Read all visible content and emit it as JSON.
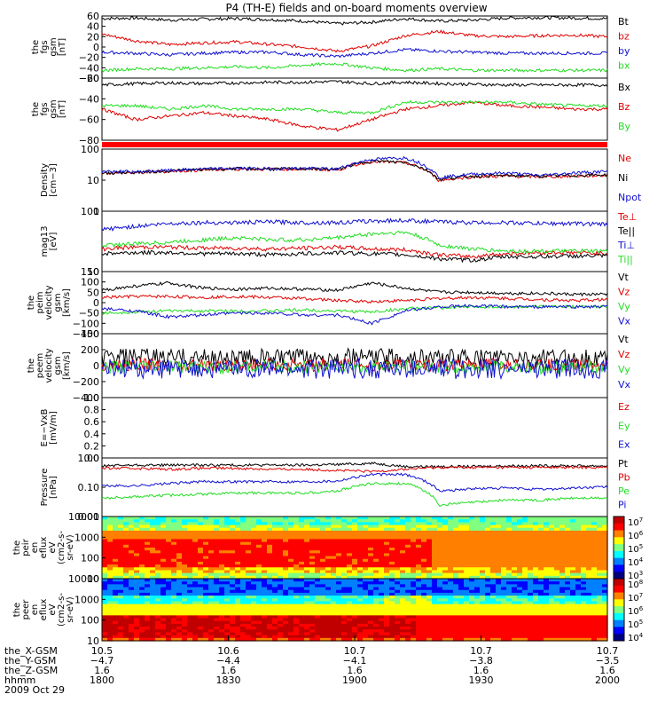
{
  "title": "P4 (TH-E) fields and on-board moments overview",
  "colors": {
    "black": "#000000",
    "red": "#e00000",
    "green": "#22dd22",
    "blue": "#1010d0",
    "ltgreen": "#33ee33",
    "orange": "#ff3333"
  },
  "chart_data": [
    {
      "type": "line",
      "ylabel": [
        "the",
        "fgs",
        "gsm",
        "[nT]"
      ],
      "yticks": [
        "60",
        "40",
        "20",
        "0",
        "−20",
        "−40",
        "−60"
      ],
      "ylim": [
        -60,
        60
      ],
      "series": [
        {
          "name": "Bt",
          "color": "black",
          "values": [
            55,
            56,
            52,
            54,
            55,
            53,
            50,
            45,
            48,
            55,
            50,
            52,
            56,
            57,
            56,
            55
          ]
        },
        {
          "name": "bz",
          "color": "red",
          "values": [
            25,
            12,
            5,
            8,
            10,
            5,
            0,
            -8,
            2,
            22,
            30,
            22,
            20,
            22,
            23,
            20
          ]
        },
        {
          "name": "by",
          "color": "blue",
          "values": [
            -10,
            -12,
            -15,
            -12,
            -10,
            -10,
            -15,
            -18,
            -12,
            -5,
            -8,
            -10,
            -12,
            -12,
            -12,
            -12
          ]
        },
        {
          "name": "bx",
          "color": "green",
          "values": [
            -45,
            -42,
            -42,
            -40,
            -38,
            -40,
            -35,
            -32,
            -40,
            -45,
            -42,
            -45,
            -45,
            -45,
            -45,
            -45
          ]
        }
      ]
    },
    {
      "type": "line",
      "ylabel": [
        "the",
        "fgs",
        "gsm",
        "[nT]"
      ],
      "yticks": [
        "−20",
        "−40",
        "−60",
        "−80"
      ],
      "ylim": [
        -90,
        0
      ],
      "series": [
        {
          "name": "Bx",
          "color": "black",
          "values": [
            -10,
            -8,
            -7,
            -8,
            -7,
            -6,
            -6,
            -5,
            -8,
            -6,
            -8,
            -9,
            -10,
            -10,
            -10,
            -10
          ]
        },
        {
          "name": "Bz",
          "color": "red",
          "values": [
            -45,
            -60,
            -55,
            -50,
            -55,
            -60,
            -70,
            -75,
            -60,
            -45,
            -40,
            -35,
            -40,
            -42,
            -45,
            -45
          ]
        },
        {
          "name": "By",
          "color": "green",
          "values": [
            -40,
            -40,
            -45,
            -40,
            -45,
            -45,
            -45,
            -50,
            -50,
            -35,
            -35,
            -35,
            -35,
            -38,
            -40,
            -40
          ]
        }
      ]
    },
    {
      "type": "line",
      "ylabel": [
        "Density",
        "[cm−3]"
      ],
      "yticks": [
        "100",
        "10",
        "1"
      ],
      "log": true,
      "ylim": [
        1,
        150
      ],
      "series": [
        {
          "name": "Ne",
          "color": "red",
          "values": [
            22,
            22,
            25,
            28,
            30,
            30,
            30,
            28,
            55,
            50,
            12,
            16,
            17,
            16,
            17,
            18
          ]
        },
        {
          "name": "Ni",
          "color": "black",
          "values": [
            22,
            23,
            26,
            29,
            31,
            30,
            31,
            29,
            58,
            52,
            13,
            17,
            18,
            17,
            18,
            19
          ]
        },
        {
          "name": "Npot",
          "color": "blue",
          "values": [
            25,
            24,
            27,
            30,
            32,
            31,
            32,
            30,
            65,
            75,
            15,
            20,
            22,
            18,
            22,
            25
          ]
        }
      ]
    },
    {
      "type": "line",
      "ylabel": [
        "mag13",
        "[eV]"
      ],
      "yticks": [
        "100",
        "10"
      ],
      "log": true,
      "ylim": [
        10,
        400
      ],
      "series": [
        {
          "name": "Te⊥",
          "color": "red",
          "values": [
            40,
            45,
            45,
            42,
            42,
            40,
            42,
            45,
            40,
            38,
            28,
            25,
            30,
            32,
            32,
            30
          ]
        },
        {
          "name": "Te||",
          "color": "black",
          "values": [
            30,
            32,
            32,
            30,
            30,
            28,
            30,
            32,
            30,
            28,
            22,
            20,
            25,
            25,
            26,
            26
          ]
        },
        {
          "name": "Ti⊥",
          "color": "blue",
          "values": [
            130,
            160,
            190,
            200,
            200,
            210,
            200,
            200,
            220,
            230,
            210,
            200,
            200,
            190,
            190,
            180
          ]
        },
        {
          "name": "Ti||",
          "color": "green",
          "values": [
            50,
            55,
            60,
            70,
            80,
            70,
            70,
            80,
            100,
            110,
            50,
            40,
            35,
            35,
            35,
            35
          ]
        }
      ]
    },
    {
      "type": "line",
      "ylabel": [
        "the",
        "peim",
        "velocity",
        "gsm",
        "[km/s]"
      ],
      "yticks": [
        "150",
        "100",
        "50",
        "0",
        "−50",
        "−100",
        "−150"
      ],
      "ylim": [
        -150,
        150
      ],
      "series": [
        {
          "name": "Vt",
          "color": "black",
          "values": [
            60,
            80,
            95,
            70,
            65,
            70,
            65,
            60,
            95,
            70,
            50,
            50,
            45,
            45,
            40,
            40
          ]
        },
        {
          "name": "Vz",
          "color": "red",
          "values": [
            25,
            30,
            30,
            25,
            30,
            25,
            20,
            10,
            5,
            10,
            20,
            25,
            20,
            15,
            10,
            15
          ]
        },
        {
          "name": "Vy",
          "color": "green",
          "values": [
            -50,
            -45,
            -40,
            -40,
            -40,
            -40,
            -35,
            -40,
            -45,
            -30,
            -25,
            -20,
            -20,
            -20,
            -20,
            -20
          ]
        },
        {
          "name": "Vx",
          "color": "blue",
          "values": [
            -30,
            -40,
            -70,
            -60,
            -50,
            -50,
            -60,
            -60,
            -100,
            -40,
            -20,
            -15,
            -20,
            -20,
            -20,
            -20
          ]
        }
      ]
    },
    {
      "type": "line",
      "ylabel": [
        "the",
        "peem",
        "velocity",
        "gsm",
        "[km/s]"
      ],
      "yticks": [
        "400",
        "200",
        "0",
        "−200",
        "−400"
      ],
      "ylim": [
        -400,
        400
      ],
      "series": [
        {
          "name": "Vt",
          "color": "black",
          "values": [
            100,
            110,
            110,
            105,
            100,
            100,
            100,
            105,
            110,
            100,
            100,
            100,
            100,
            95,
            95,
            95
          ]
        },
        {
          "name": "Vz",
          "color": "red",
          "values": [
            10,
            10,
            15,
            10,
            5,
            10,
            10,
            5,
            10,
            10,
            10,
            10,
            10,
            10,
            10,
            10
          ]
        },
        {
          "name": "Vy",
          "color": "green",
          "values": [
            -20,
            -20,
            -15,
            -20,
            -20,
            -20,
            -15,
            -20,
            -20,
            -20,
            -20,
            -20,
            -20,
            -25,
            -20,
            -20
          ]
        },
        {
          "name": "Vx",
          "color": "blue",
          "values": [
            -40,
            -40,
            -40,
            -40,
            -40,
            -40,
            -40,
            -40,
            -40,
            -40,
            -40,
            -40,
            -40,
            -40,
            -40,
            -40
          ]
        }
      ]
    },
    {
      "type": "line",
      "ylabel": [
        "E=−VxB",
        "[mV/m]"
      ],
      "yticks": [
        "1.0",
        "0.8",
        "0.6",
        "0.4",
        "0.2",
        "0.0"
      ],
      "ylim": [
        0,
        1
      ],
      "series": [
        {
          "name": "Ez",
          "color": "red",
          "values": []
        },
        {
          "name": "Ey",
          "color": "green",
          "values": []
        },
        {
          "name": "Ex",
          "color": "blue",
          "values": []
        }
      ]
    },
    {
      "type": "line",
      "ylabel": [
        "Pressure",
        "[nPa]"
      ],
      "yticks": [
        "1.00",
        "0.10",
        "0.01"
      ],
      "log": true,
      "ylim": [
        0.01,
        3
      ],
      "series": [
        {
          "name": "Pt",
          "color": "black",
          "values": [
            1.4,
            1.5,
            1.5,
            1.5,
            1.5,
            1.5,
            1.5,
            1.6,
            1.8,
            1.3,
            1.3,
            1.3,
            1.4,
            1.4,
            1.4,
            1.4
          ]
        },
        {
          "name": "Pb",
          "color": "red",
          "values": [
            1.1,
            1.1,
            1.0,
            1.1,
            1.1,
            1.0,
            1.0,
            0.9,
            0.8,
            1.0,
            1.2,
            1.2,
            1.2,
            1.2,
            1.2,
            1.2
          ]
        },
        {
          "name": "Pe",
          "color": "green",
          "values": [
            0.06,
            0.07,
            0.08,
            0.09,
            0.1,
            0.1,
            0.1,
            0.12,
            0.25,
            0.25,
            0.03,
            0.04,
            0.05,
            0.05,
            0.06,
            0.06
          ]
        },
        {
          "name": "Pi",
          "color": "blue",
          "values": [
            0.2,
            0.2,
            0.25,
            0.3,
            0.3,
            0.3,
            0.3,
            0.32,
            0.6,
            0.6,
            0.12,
            0.15,
            0.16,
            0.14,
            0.16,
            0.18
          ]
        }
      ]
    },
    {
      "type": "heatmap",
      "ylabel": [
        "the",
        "peir",
        "en",
        "eflux",
        "eV",
        "(cm2-s-",
        "sr-eV)"
      ],
      "yticks": [
        "10000",
        "1000",
        "100",
        "10"
      ],
      "colorbar": [
        "10^7",
        "10^6",
        "10^5",
        "10^4",
        "10^3"
      ]
    },
    {
      "type": "heatmap",
      "ylabel": [
        "the",
        "peer",
        "en",
        "eflux",
        "eV",
        "(cm2-s-",
        "sr-eV)"
      ],
      "yticks": [
        "10000",
        "1000",
        "100",
        "10"
      ],
      "colorbar": [
        "10^8",
        "10^7",
        "10^6",
        "10^5",
        "10^4"
      ]
    }
  ],
  "xaxis": {
    "rows": [
      {
        "label": "the_X-GSM",
        "values": [
          "10.5",
          "10.6",
          "10.7",
          "10.7",
          "10.7"
        ]
      },
      {
        "label": "the_Y-GSM",
        "values": [
          "−4.7",
          "−4.4",
          "−4.1",
          "−3.8",
          "−3.5"
        ]
      },
      {
        "label": "the_Z-GSM",
        "values": [
          "1.6",
          "1.6",
          "1.6",
          "1.6",
          "1.6"
        ]
      },
      {
        "label": "hhmm",
        "values": [
          "1800",
          "1830",
          "1900",
          "1930",
          "2000"
        ]
      }
    ],
    "date": "2009 Oct 29"
  }
}
